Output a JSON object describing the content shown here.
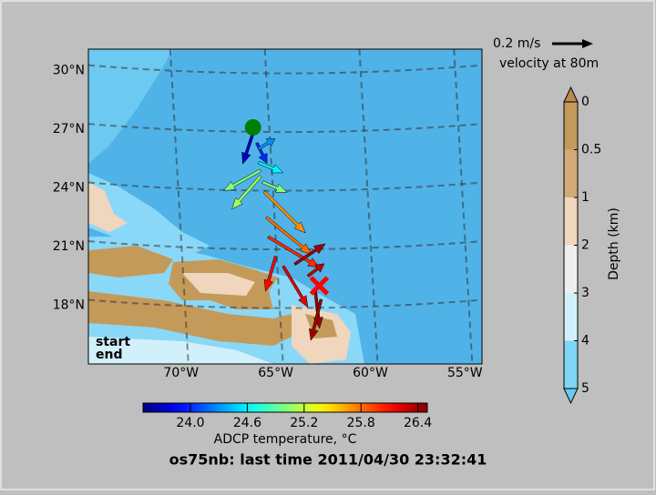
{
  "chart_data": {
    "type": "quiver",
    "title": "os75nb: last time 2011/04/30 23:32:41",
    "xlim": [
      -74.9,
      -54.1
    ],
    "ylim": [
      15.0,
      31.1
    ],
    "xticks": [
      {
        "value": -70,
        "label": "70°W"
      },
      {
        "value": -65,
        "label": "65°W"
      },
      {
        "value": -60,
        "label": "60°W"
      },
      {
        "value": -55,
        "label": "55°W"
      }
    ],
    "yticks": [
      {
        "value": 18,
        "label": "18°N"
      },
      {
        "value": 21,
        "label": "21°N"
      },
      {
        "value": 24,
        "label": "24°N"
      },
      {
        "value": 27,
        "label": "27°N"
      },
      {
        "value": 30,
        "label": "30°N"
      }
    ],
    "grid": true,
    "vectors": {
      "lon": [
        -66.2,
        -66.0,
        -65.9,
        -65.9,
        -65.8,
        -65.8,
        -65.7,
        -65.6,
        -65.5,
        -65.4,
        -65.0,
        -64.6,
        -64.0,
        -63.3,
        -62.9,
        -62.6
      ],
      "lat": [
        26.8,
        26.3,
        26.0,
        25.3,
        24.9,
        24.6,
        24.3,
        23.8,
        22.5,
        21.5,
        20.5,
        20.0,
        20.1,
        19.5,
        18.7,
        18.3
      ],
      "u": [
        -0.05,
        0.05,
        0.08,
        0.12,
        -0.18,
        -0.14,
        0.12,
        0.2,
        0.22,
        0.25,
        -0.05,
        0.12,
        0.15,
        0.08,
        0.02,
        -0.05
      ],
      "v": [
        -0.15,
        -0.1,
        0.05,
        -0.05,
        -0.1,
        -0.16,
        -0.05,
        -0.2,
        -0.18,
        -0.15,
        -0.17,
        -0.2,
        0.1,
        0.06,
        -0.18,
        -0.2
      ],
      "temperature": [
        23.7,
        24.0,
        24.3,
        24.6,
        25.0,
        25.1,
        25.0,
        25.7,
        25.8,
        26.0,
        26.1,
        26.2,
        26.4,
        26.3,
        26.4,
        26.4
      ]
    },
    "key": {
      "value": 0.2,
      "label": "0.2 m/s"
    },
    "key_caption": "velocity at 80m",
    "start": {
      "label": "start",
      "lon": -66.2,
      "lat": 27.1,
      "color": "#008000"
    },
    "end": {
      "label": "end",
      "lon": -62.7,
      "lat": 19.0,
      "color": "#ff0000"
    },
    "temperature_colorbar": {
      "label": "ADCP temperature, °C",
      "clim": [
        23.5,
        26.5
      ],
      "ticks": [
        {
          "value": 24,
          "label": "24.0"
        },
        24.6,
        25.2,
        25.8,
        26.4
      ]
    },
    "depth_colorbar": {
      "label": "Depth (km)",
      "levels": [
        0,
        0.5,
        1,
        2,
        3,
        4,
        5
      ],
      "colors": [
        "#c49a5a",
        "#d3ab78",
        "#efd6bd",
        "#efefef",
        "#d2f0fa",
        "#7fd5f5"
      ],
      "extend_colors": [
        "#b88a4c",
        "#6cc9f0"
      ]
    }
  }
}
